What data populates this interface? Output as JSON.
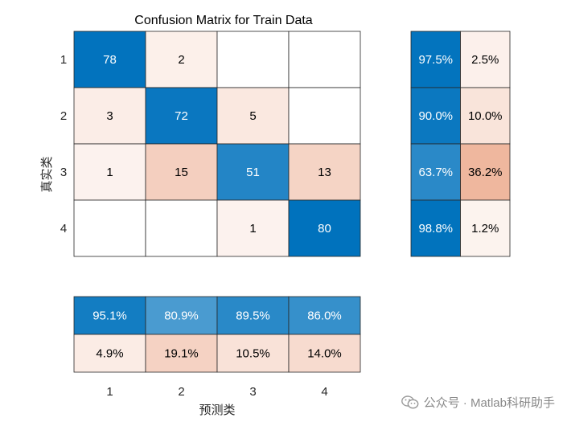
{
  "chart_data": {
    "type": "heatmap",
    "title": "Confusion Matrix for Train Data",
    "xlabel": "预测类",
    "ylabel": "真实类",
    "classes": [
      "1",
      "2",
      "3",
      "4"
    ],
    "matrix": [
      [
        78,
        2,
        null,
        null
      ],
      [
        3,
        72,
        5,
        null
      ],
      [
        1,
        15,
        51,
        13
      ],
      [
        null,
        null,
        1,
        80
      ]
    ],
    "row_summary": [
      [
        "97.5%",
        "2.5%"
      ],
      [
        "90.0%",
        "10.0%"
      ],
      [
        "63.7%",
        "36.2%"
      ],
      [
        "98.8%",
        "1.2%"
      ]
    ],
    "row_summary_values": [
      [
        97.5,
        2.5
      ],
      [
        90.0,
        10.0
      ],
      [
        63.7,
        36.2
      ],
      [
        98.8,
        1.2
      ]
    ],
    "column_summary": [
      [
        "95.1%",
        "80.9%",
        "89.5%",
        "86.0%"
      ],
      [
        "4.9%",
        "19.1%",
        "10.5%",
        "14.0%"
      ]
    ],
    "column_summary_values": [
      [
        95.1,
        80.9,
        89.5,
        86.0
      ],
      [
        4.9,
        19.1,
        10.5,
        14.0
      ]
    ],
    "colors": {
      "correct": "#0072BD",
      "incorrect": "#D95319",
      "empty": "#FFFFFF",
      "grid": "#262626"
    }
  },
  "watermark": {
    "text": "公众号 · Matlab科研助手",
    "icon": "wechat-icon"
  }
}
